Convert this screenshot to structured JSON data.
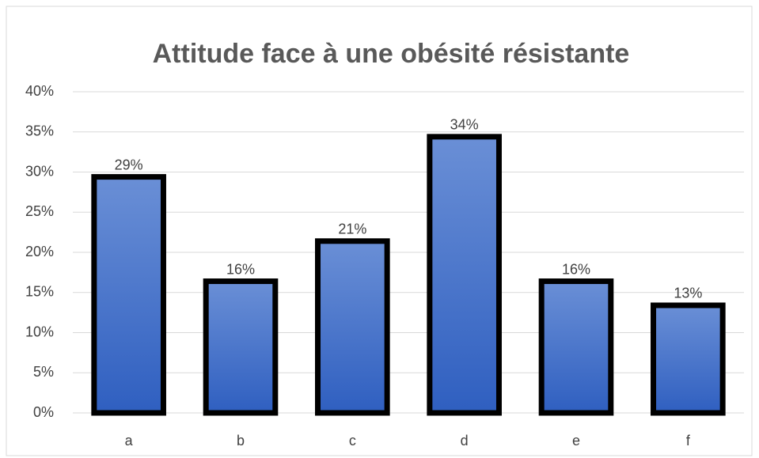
{
  "chart_data": {
    "type": "bar",
    "title": "Attitude face à une obésité résistante",
    "categories": [
      "a",
      "b",
      "c",
      "d",
      "e",
      "f"
    ],
    "values": [
      29.4,
      16.4,
      21.4,
      34.4,
      16.4,
      13.4
    ],
    "value_labels": [
      "29%",
      "16%",
      "21%",
      "34%",
      "16%",
      "13%"
    ],
    "color": "#4472c4",
    "ylim": [
      0,
      40
    ],
    "yticks": [
      {
        "value": 0,
        "label": "0%"
      },
      {
        "value": 5,
        "label": "5%"
      },
      {
        "value": 10,
        "label": "10%"
      },
      {
        "value": 15,
        "label": "15%"
      },
      {
        "value": 20,
        "label": "20%"
      },
      {
        "value": 25,
        "label": "25%"
      },
      {
        "value": 30,
        "label": "30%"
      },
      {
        "value": 35,
        "label": "35%"
      },
      {
        "value": 40,
        "label": "40%"
      }
    ],
    "grid": true
  }
}
